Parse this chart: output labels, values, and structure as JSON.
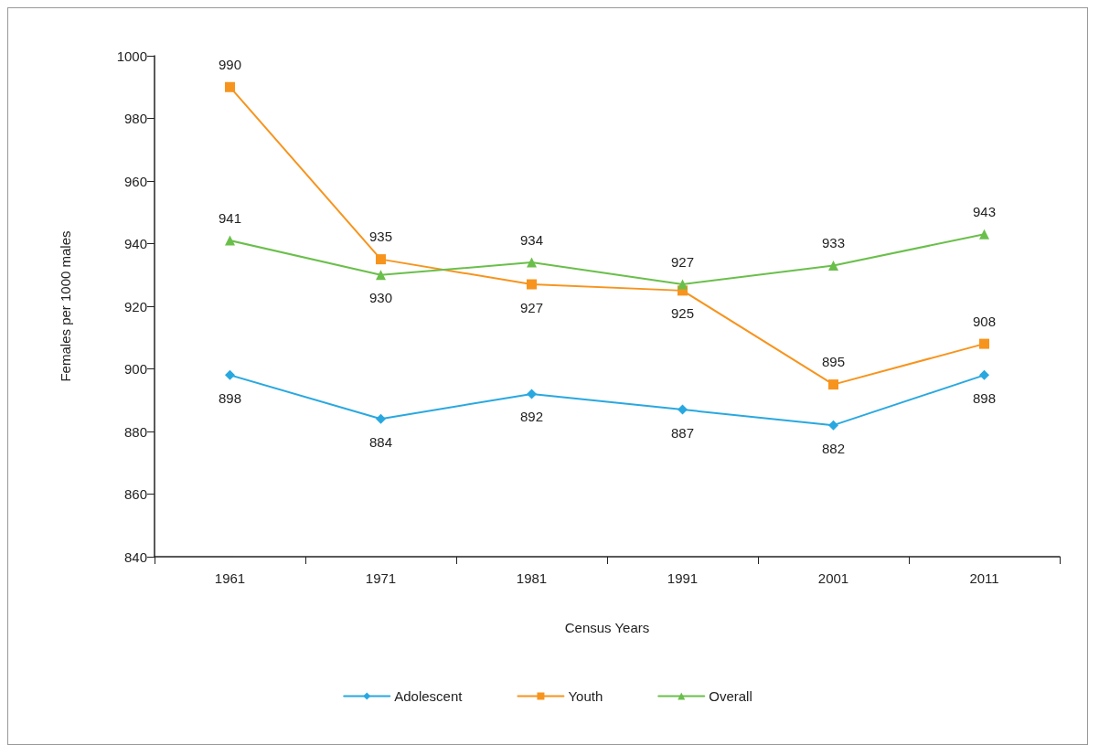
{
  "chart_data": {
    "type": "line",
    "xlabel": "Census Years",
    "ylabel": "Females per 1000 males",
    "categories": [
      "1961",
      "1971",
      "1981",
      "1991",
      "2001",
      "2011"
    ],
    "series": [
      {
        "name": "Adolescent",
        "color": "#29a8e0",
        "marker": "diamond",
        "values": [
          898,
          884,
          892,
          887,
          882,
          898
        ]
      },
      {
        "name": "Youth",
        "color": "#f7941d",
        "marker": "square",
        "values": [
          990,
          935,
          927,
          925,
          895,
          908
        ]
      },
      {
        "name": "Overall",
        "color": "#6abf4b",
        "marker": "triangle",
        "values": [
          941,
          930,
          934,
          927,
          933,
          943
        ]
      }
    ],
    "ylim": [
      840,
      1000
    ],
    "yticks": [
      840,
      860,
      880,
      900,
      920,
      940,
      960,
      980,
      1000
    ],
    "grid": false,
    "legend": "bottom",
    "data_labels": true,
    "line_style": "solid"
  }
}
